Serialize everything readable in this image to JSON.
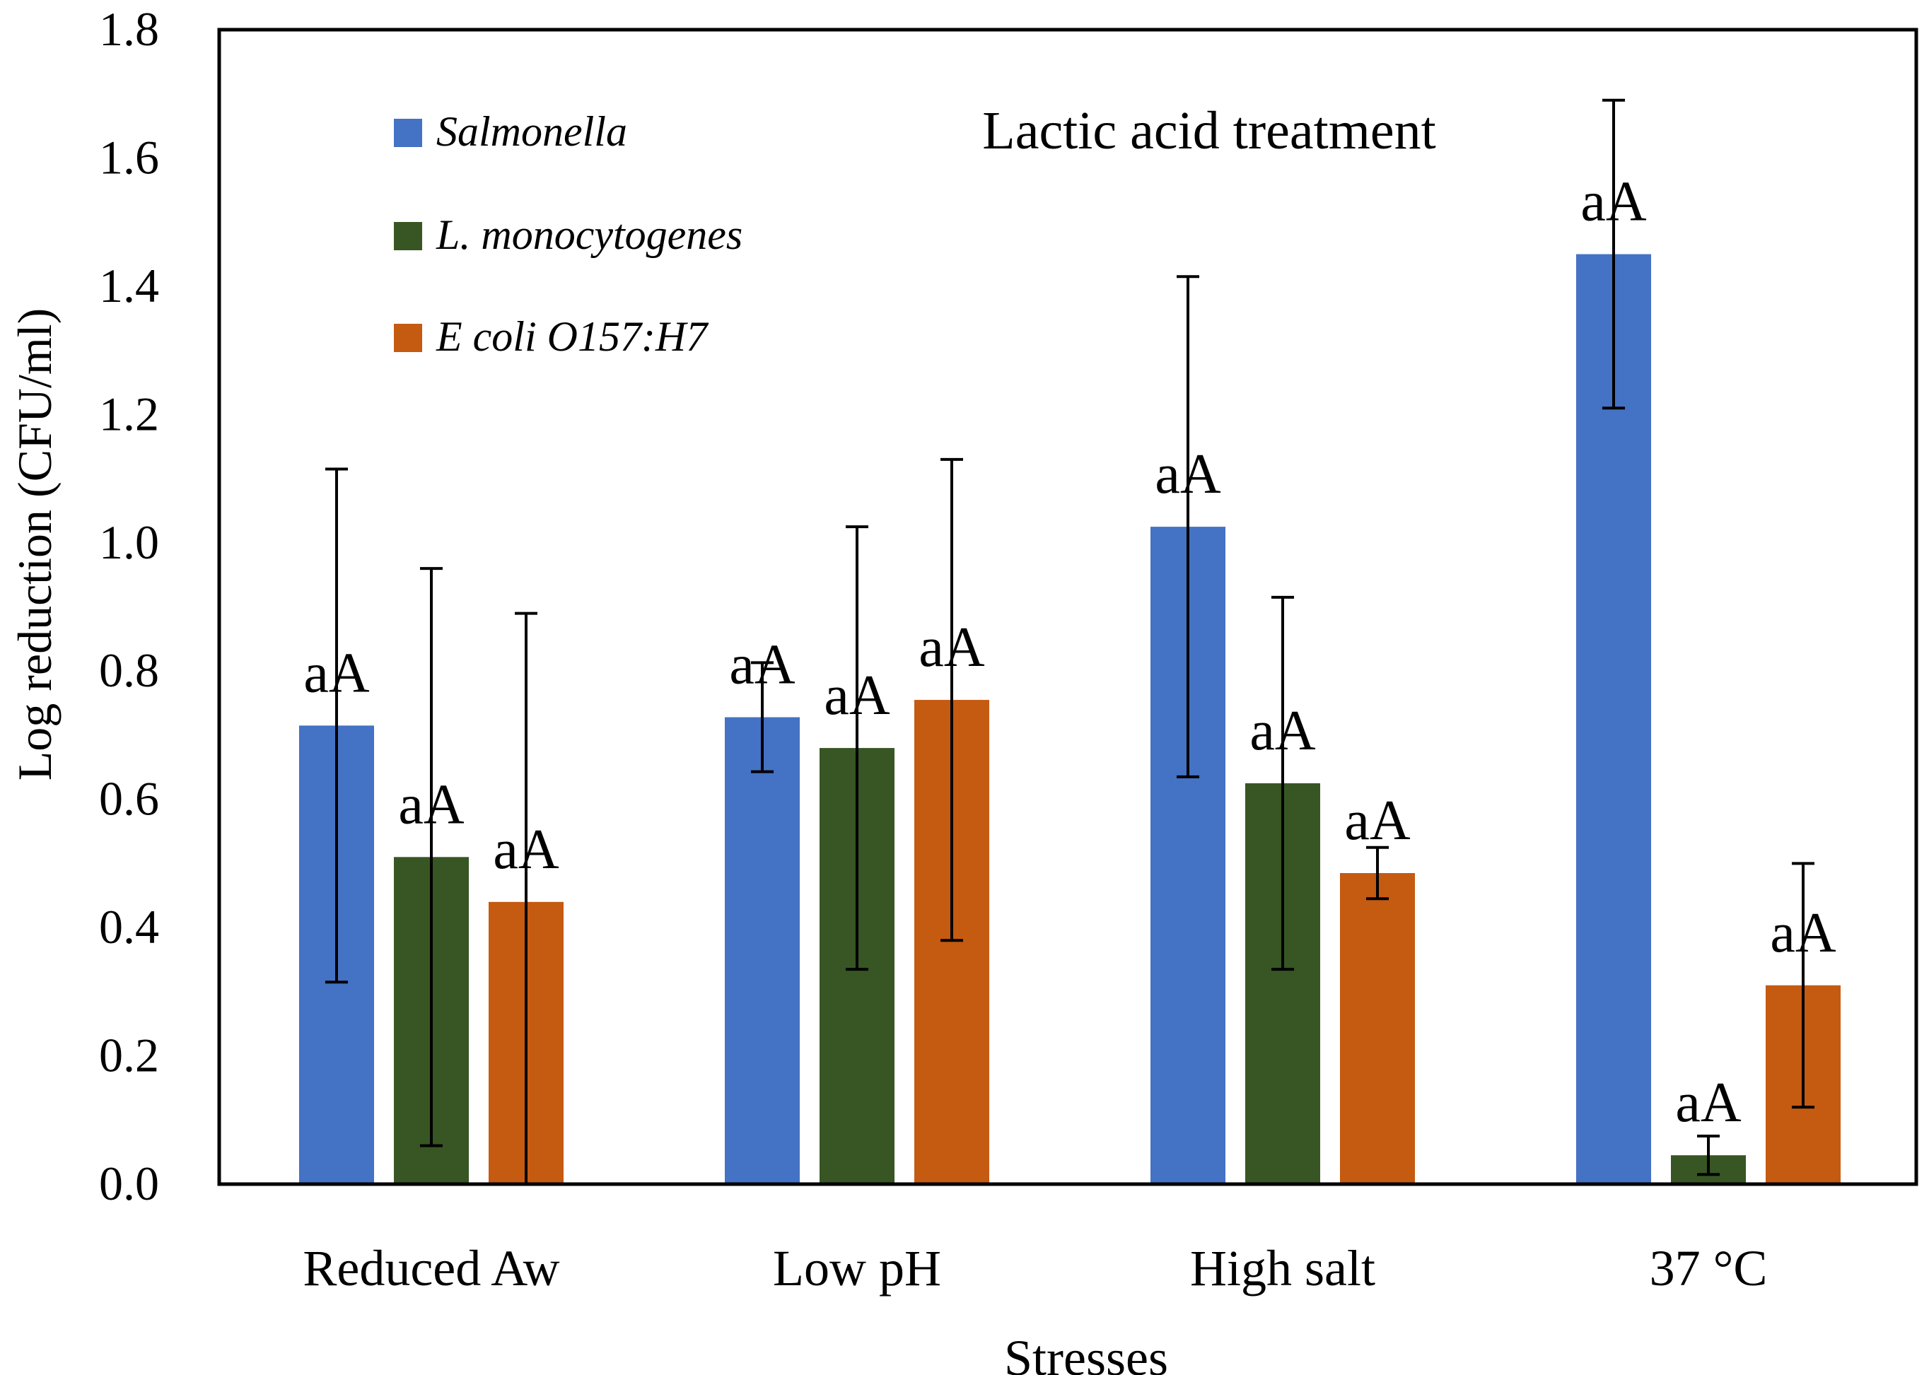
{
  "chart_data": {
    "type": "bar",
    "title": "Lactic acid treatment",
    "xlabel": "Stresses",
    "ylabel": "Log reduction  (CFU/ml)",
    "ylim": [
      0,
      1.8
    ],
    "yticks": [
      "0.0",
      "0.2",
      "0.4",
      "0.6",
      "0.8",
      "1.0",
      "1.2",
      "1.4",
      "1.6",
      "1.8"
    ],
    "categories": [
      "Reduced Aw",
      "Low pH",
      "High salt",
      "37 °C"
    ],
    "legend_position": "top-left",
    "series": [
      {
        "name": "Salmonella",
        "color": "#4472C4",
        "values": [
          0.715,
          0.728,
          1.025,
          1.45
        ],
        "errors": [
          0.4,
          0.085,
          0.39,
          0.24
        ],
        "labels": [
          "aA",
          "aA",
          "aA",
          "aA"
        ]
      },
      {
        "name": "L. monocytogenes",
        "color": "#375623",
        "values": [
          0.51,
          0.68,
          0.625,
          0.045
        ],
        "errors": [
          0.45,
          0.345,
          0.29,
          0.03
        ],
        "labels": [
          "aA",
          "aA",
          "aA",
          "aA"
        ]
      },
      {
        "name": "E coli O157:H7",
        "color": "#C55A11",
        "values": [
          0.44,
          0.755,
          0.485,
          0.31
        ],
        "errors": [
          0.45,
          0.375,
          0.04,
          0.19
        ],
        "labels": [
          "aA",
          "aA",
          "aA",
          "aA"
        ]
      }
    ]
  }
}
